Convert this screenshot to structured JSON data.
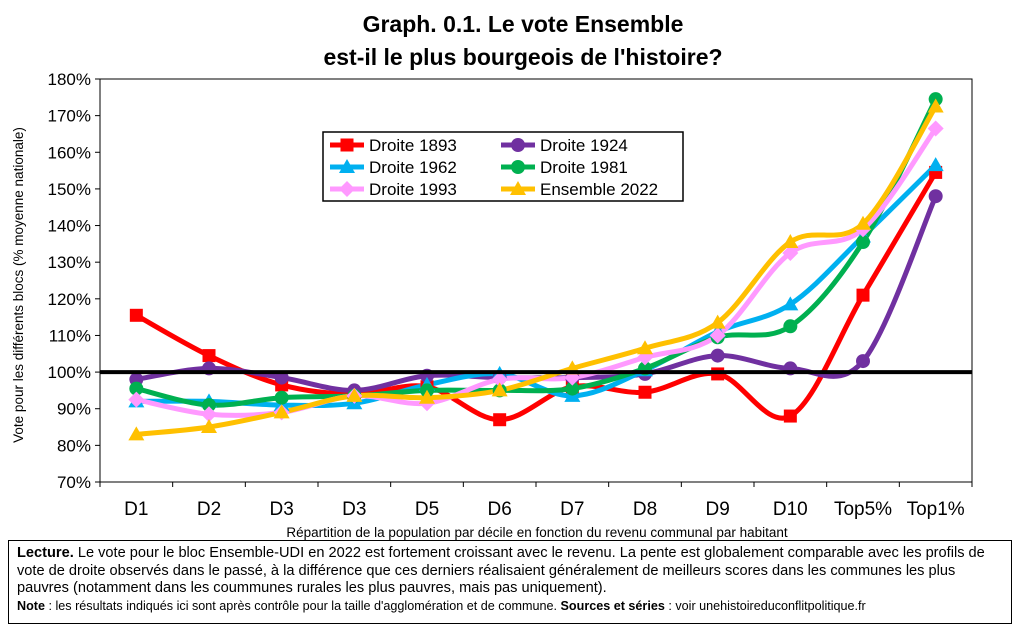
{
  "chart_data": {
    "type": "line",
    "title": [
      "Graph. 0.1. Le vote Ensemble",
      "est-il le plus bourgeois de l'histoire?"
    ],
    "xlabel": "Répartition de la population par décile en fonction du revenu communal par habitant",
    "ylabel": "Vote pour les différents blocs (% moyenne nationale)",
    "categories": [
      "D1",
      "D2",
      "D3",
      "D3",
      "D5",
      "D6",
      "D7",
      "D8",
      "D9",
      "D10",
      "Top5%",
      "Top1%"
    ],
    "ylim": [
      70,
      180
    ],
    "yticks": [
      70,
      80,
      90,
      100,
      110,
      120,
      130,
      140,
      150,
      160,
      170,
      180
    ],
    "ytick_labels": [
      "70%",
      "80%",
      "90%",
      "100%",
      "110%",
      "120%",
      "130%",
      "140%",
      "150%",
      "160%",
      "170%",
      "180%"
    ],
    "reference_line": 100,
    "grid": false,
    "legend_position": "top-center",
    "series": [
      {
        "name": "Droite 1893",
        "color": "#ff0000",
        "marker": "square",
        "values": [
          115.5,
          104.5,
          96.5,
          94,
          96,
          87,
          96,
          94.5,
          99.5,
          88,
          121,
          154.5
        ]
      },
      {
        "name": "Droite 1924",
        "color": "#7030a0",
        "marker": "circle",
        "values": [
          98,
          101,
          98.5,
          95,
          99,
          98.5,
          98.5,
          99.5,
          104.5,
          101,
          103,
          148
        ]
      },
      {
        "name": "Droite 1962",
        "color": "#00b0f0",
        "marker": "triangle",
        "values": [
          92,
          92,
          91,
          91.5,
          96.5,
          99.5,
          93.5,
          100.5,
          111,
          118.5,
          137,
          156.5
        ]
      },
      {
        "name": "Droite 1981",
        "color": "#00b050",
        "marker": "circle",
        "values": [
          95.5,
          91,
          93,
          93.5,
          95,
          95,
          95.5,
          101,
          109.5,
          112.5,
          135.5,
          174.5
        ]
      },
      {
        "name": "Droite 1993",
        "color": "#ff99ff",
        "marker": "diamond",
        "values": [
          92.5,
          88.5,
          89,
          93.5,
          91.5,
          98,
          98.5,
          104,
          110,
          132.5,
          139,
          166.5
        ]
      },
      {
        "name": "Ensemble 2022",
        "color": "#ffc000",
        "marker": "triangle",
        "values": [
          83,
          85,
          89,
          93.5,
          93,
          95,
          101,
          106.5,
          113.5,
          135.5,
          140.5,
          172.5
        ]
      }
    ]
  },
  "note": {
    "lecture_label": "Lecture.",
    "lecture_text": " Le vote pour le bloc Ensemble-UDI en 2022 est fortement croissant avec le revenu. La pente est globalement comparable avec les profils de vote de droite observés dans le passé, à la différence que ces derniers réalisaient généralement de meilleurs scores dans les communes les plus pauvres (notamment dans les coummunes rurales les plus pauvres, mais pas uniquement).",
    "note_label": "Note",
    "note_text": " : les résultats indiqués ici sont après contrôle pour la taille d'agglomération et de commune. ",
    "sources_label": "Sources et séries",
    "sources_text": " : voir unehistoireduconflitpolitique.fr"
  }
}
